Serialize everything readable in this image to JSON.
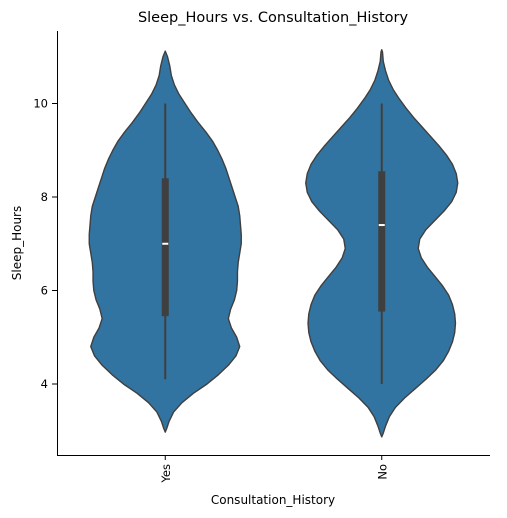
{
  "chart_data": {
    "type": "violin",
    "title": "Sleep_Hours vs. Consultation_History",
    "xlabel": "Consultation_History",
    "ylabel": "Sleep_Hours",
    "categories": [
      "Yes",
      "No"
    ],
    "ylim": [
      2.5,
      11.5
    ],
    "yticks": [
      4,
      6,
      8,
      10
    ],
    "grid": false,
    "fill_color": "#3274a1",
    "edge_color": "#3f3f3f",
    "violins": [
      {
        "category": "Yes",
        "whisker_low": 4.1,
        "q1": 5.45,
        "median": 7.0,
        "q3": 8.4,
        "whisker_high": 10.0,
        "density_y": [
          2.97,
          3.05,
          3.2,
          3.4,
          3.6,
          3.8,
          4.0,
          4.2,
          4.4,
          4.6,
          4.8,
          5.0,
          5.2,
          5.4,
          5.6,
          5.8,
          6.0,
          6.2,
          6.4,
          6.6,
          6.8,
          7.0,
          7.2,
          7.4,
          7.6,
          7.8,
          8.0,
          8.2,
          8.4,
          8.6,
          8.8,
          9.0,
          9.2,
          9.4,
          9.6,
          9.8,
          10.0,
          10.2,
          10.4,
          10.6,
          10.8,
          11.0,
          11.12
        ],
        "density_w": [
          0.0,
          0.02,
          0.05,
          0.11,
          0.22,
          0.37,
          0.55,
          0.7,
          0.83,
          0.93,
          0.98,
          0.94,
          0.87,
          0.83,
          0.86,
          0.91,
          0.94,
          0.95,
          0.95,
          0.96,
          0.98,
          1.0,
          1.0,
          0.99,
          0.98,
          0.96,
          0.92,
          0.88,
          0.84,
          0.8,
          0.75,
          0.69,
          0.62,
          0.53,
          0.43,
          0.34,
          0.26,
          0.18,
          0.12,
          0.08,
          0.06,
          0.03,
          0.0
        ]
      },
      {
        "category": "No",
        "whisker_low": 4.0,
        "q1": 5.55,
        "median": 7.4,
        "q3": 8.55,
        "whisker_high": 10.0,
        "density_y": [
          2.87,
          2.95,
          3.1,
          3.3,
          3.5,
          3.7,
          3.9,
          4.1,
          4.3,
          4.5,
          4.7,
          4.9,
          5.1,
          5.3,
          5.5,
          5.7,
          5.9,
          6.1,
          6.3,
          6.5,
          6.7,
          6.9,
          7.1,
          7.3,
          7.5,
          7.7,
          7.9,
          8.1,
          8.3,
          8.5,
          8.7,
          8.9,
          9.1,
          9.3,
          9.5,
          9.7,
          9.9,
          10.1,
          10.3,
          10.5,
          10.7,
          10.9,
          11.1,
          11.15
        ],
        "density_w": [
          0.0,
          0.02,
          0.05,
          0.1,
          0.18,
          0.3,
          0.44,
          0.58,
          0.71,
          0.81,
          0.88,
          0.93,
          0.96,
          0.97,
          0.96,
          0.93,
          0.88,
          0.8,
          0.7,
          0.6,
          0.52,
          0.48,
          0.5,
          0.58,
          0.7,
          0.82,
          0.92,
          0.98,
          1.0,
          0.98,
          0.93,
          0.85,
          0.75,
          0.64,
          0.53,
          0.42,
          0.32,
          0.23,
          0.15,
          0.09,
          0.05,
          0.02,
          0.01,
          0.0
        ]
      }
    ]
  }
}
